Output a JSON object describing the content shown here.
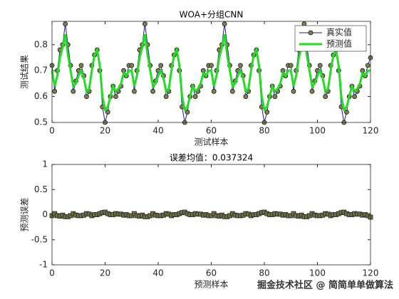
{
  "chart_data": [
    {
      "type": "line",
      "title": "WOA+分组CNN",
      "xlabel": "测试样本",
      "ylabel": "测试结果",
      "x": [
        0,
        1,
        2,
        3,
        4,
        5,
        6,
        7,
        8,
        9,
        10,
        11,
        12,
        13,
        14,
        15,
        16,
        17,
        18,
        19,
        20,
        21,
        22,
        23,
        24,
        25,
        26,
        27,
        28,
        29,
        30,
        31,
        32,
        33,
        34,
        35,
        36,
        37,
        38,
        39,
        40,
        41,
        42,
        43,
        44,
        45,
        46,
        47,
        48,
        49,
        50,
        51,
        52,
        53,
        54,
        55,
        56,
        57,
        58,
        59,
        60,
        61,
        62,
        63,
        64,
        65,
        66,
        67,
        68,
        69,
        70,
        71,
        72,
        73,
        74,
        75,
        76,
        77,
        78,
        79,
        80,
        81,
        82,
        83,
        84,
        85,
        86,
        87,
        88,
        89,
        90,
        91,
        92,
        93,
        94,
        95,
        96,
        97,
        98,
        99,
        100,
        101,
        102,
        103,
        104,
        105,
        106,
        107,
        108,
        109,
        110,
        111,
        112,
        113,
        114,
        115,
        116,
        117,
        118,
        119,
        120
      ],
      "series": [
        {
          "name": "真实值",
          "color": "#1a1aa6",
          "marker": "o",
          "marker_color": "#7f7f4f",
          "width": 1,
          "values": [
            0.72,
            0.62,
            0.7,
            0.78,
            0.8,
            0.88,
            0.8,
            0.72,
            0.62,
            0.66,
            0.7,
            0.72,
            0.68,
            0.6,
            0.62,
            0.72,
            0.76,
            0.78,
            0.7,
            0.56,
            0.5,
            0.54,
            0.6,
            0.64,
            0.6,
            0.62,
            0.64,
            0.7,
            0.68,
            0.72,
            0.72,
            0.62,
            0.7,
            0.78,
            0.8,
            0.88,
            0.8,
            0.72,
            0.62,
            0.66,
            0.7,
            0.72,
            0.68,
            0.6,
            0.62,
            0.72,
            0.76,
            0.78,
            0.7,
            0.56,
            0.5,
            0.54,
            0.6,
            0.64,
            0.6,
            0.62,
            0.64,
            0.7,
            0.68,
            0.72,
            0.72,
            0.62,
            0.7,
            0.78,
            0.8,
            0.88,
            0.8,
            0.72,
            0.62,
            0.66,
            0.7,
            0.72,
            0.68,
            0.6,
            0.62,
            0.72,
            0.76,
            0.78,
            0.7,
            0.56,
            0.5,
            0.54,
            0.6,
            0.64,
            0.6,
            0.62,
            0.64,
            0.7,
            0.68,
            0.72,
            0.72,
            0.62,
            0.7,
            0.78,
            0.8,
            0.88,
            0.8,
            0.72,
            0.62,
            0.66,
            0.7,
            0.72,
            0.68,
            0.6,
            0.62,
            0.72,
            0.76,
            0.78,
            0.7,
            0.56,
            0.5,
            0.54,
            0.6,
            0.64,
            0.6,
            0.62,
            0.64,
            0.7,
            0.68,
            0.72,
            0.75
          ]
        },
        {
          "name": "预测值",
          "color": "#22dd22",
          "width": 3,
          "values": [
            0.7,
            0.64,
            0.68,
            0.75,
            0.79,
            0.84,
            0.76,
            0.7,
            0.64,
            0.65,
            0.68,
            0.7,
            0.67,
            0.62,
            0.63,
            0.7,
            0.76,
            0.78,
            0.72,
            0.6,
            0.55,
            0.56,
            0.6,
            0.64,
            0.62,
            0.63,
            0.65,
            0.69,
            0.68,
            0.7,
            0.7,
            0.64,
            0.68,
            0.75,
            0.79,
            0.84,
            0.76,
            0.7,
            0.64,
            0.65,
            0.68,
            0.7,
            0.67,
            0.62,
            0.63,
            0.7,
            0.76,
            0.78,
            0.72,
            0.6,
            0.55,
            0.56,
            0.6,
            0.64,
            0.62,
            0.63,
            0.65,
            0.69,
            0.68,
            0.7,
            0.7,
            0.64,
            0.68,
            0.75,
            0.79,
            0.84,
            0.76,
            0.7,
            0.64,
            0.65,
            0.68,
            0.7,
            0.67,
            0.62,
            0.63,
            0.7,
            0.76,
            0.78,
            0.72,
            0.6,
            0.55,
            0.56,
            0.6,
            0.64,
            0.62,
            0.63,
            0.65,
            0.69,
            0.68,
            0.7,
            0.7,
            0.64,
            0.68,
            0.75,
            0.79,
            0.84,
            0.76,
            0.7,
            0.64,
            0.65,
            0.68,
            0.7,
            0.67,
            0.62,
            0.63,
            0.7,
            0.76,
            0.78,
            0.72,
            0.6,
            0.55,
            0.56,
            0.6,
            0.64,
            0.62,
            0.63,
            0.65,
            0.69,
            0.68,
            0.7,
            0.7
          ]
        }
      ],
      "xlim": [
        0,
        120
      ],
      "xticks": [
        0,
        20,
        40,
        60,
        80,
        100,
        120
      ],
      "ylim": [
        0.5,
        0.89
      ],
      "yticks": [
        0.5,
        0.6,
        0.7,
        0.8
      ],
      "legend": "northeast"
    },
    {
      "type": "scatter",
      "title": "误差均值：0.037324",
      "xlabel": "预测样本",
      "ylabel": "预测误差",
      "x": [
        0,
        1,
        2,
        3,
        4,
        5,
        6,
        7,
        8,
        9,
        10,
        11,
        12,
        13,
        14,
        15,
        16,
        17,
        18,
        19,
        20,
        21,
        22,
        23,
        24,
        25,
        26,
        27,
        28,
        29,
        30,
        31,
        32,
        33,
        34,
        35,
        36,
        37,
        38,
        39,
        40,
        41,
        42,
        43,
        44,
        45,
        46,
        47,
        48,
        49,
        50,
        51,
        52,
        53,
        54,
        55,
        56,
        57,
        58,
        59,
        60,
        61,
        62,
        63,
        64,
        65,
        66,
        67,
        68,
        69,
        70,
        71,
        72,
        73,
        74,
        75,
        76,
        77,
        78,
        79,
        80,
        81,
        82,
        83,
        84,
        85,
        86,
        87,
        88,
        89,
        90,
        91,
        92,
        93,
        94,
        95,
        96,
        97,
        98,
        99,
        100,
        101,
        102,
        103,
        104,
        105,
        106,
        107,
        108,
        109,
        110,
        111,
        112,
        113,
        114,
        115,
        116,
        117,
        118,
        119,
        120
      ],
      "series": [
        {
          "name": "预测误差",
          "color": "#222222",
          "marker": "s",
          "marker_color": "#6f6f45",
          "values": [
            -0.02,
            0.02,
            -0.02,
            -0.03,
            -0.01,
            -0.04,
            -0.04,
            -0.02,
            0.02,
            -0.01,
            -0.02,
            -0.02,
            -0.01,
            0.02,
            0.01,
            -0.02,
            0,
            0,
            0.02,
            0.04,
            0.05,
            0.02,
            0,
            0,
            0.02,
            0.01,
            0.01,
            -0.01,
            0,
            -0.02,
            -0.02,
            0.02,
            -0.02,
            -0.03,
            -0.01,
            -0.04,
            -0.04,
            -0.02,
            0.02,
            -0.01,
            -0.02,
            -0.02,
            -0.01,
            0.02,
            0.01,
            -0.02,
            0,
            0,
            0.02,
            0.04,
            0.05,
            0.02,
            0,
            0,
            0.02,
            0.01,
            0.01,
            -0.01,
            0,
            -0.02,
            -0.02,
            0.02,
            -0.02,
            -0.03,
            -0.01,
            -0.04,
            -0.04,
            -0.02,
            0.02,
            -0.01,
            -0.02,
            -0.02,
            -0.01,
            0.02,
            0.01,
            -0.02,
            0,
            0,
            0.02,
            0.04,
            0.05,
            0.02,
            0,
            0,
            0.02,
            0.01,
            0.01,
            -0.01,
            0,
            -0.02,
            -0.02,
            0.02,
            -0.02,
            -0.03,
            -0.01,
            -0.04,
            -0.04,
            -0.02,
            0.02,
            -0.01,
            -0.02,
            -0.02,
            -0.01,
            0.02,
            0.01,
            -0.02,
            0,
            0,
            0.02,
            0.04,
            0.05,
            0.02,
            0,
            0,
            0.02,
            0.01,
            0.01,
            -0.01,
            0,
            -0.02,
            -0.05
          ]
        }
      ],
      "xlim": [
        0,
        120
      ],
      "xticks": [
        0,
        20,
        40,
        60,
        80,
        100,
        120
      ],
      "ylim": [
        -1,
        1
      ],
      "yticks": [
        -1,
        -0.5,
        0,
        0.5,
        1
      ]
    }
  ],
  "watermark": "掘金技术社区 @ 简简单单做算法"
}
